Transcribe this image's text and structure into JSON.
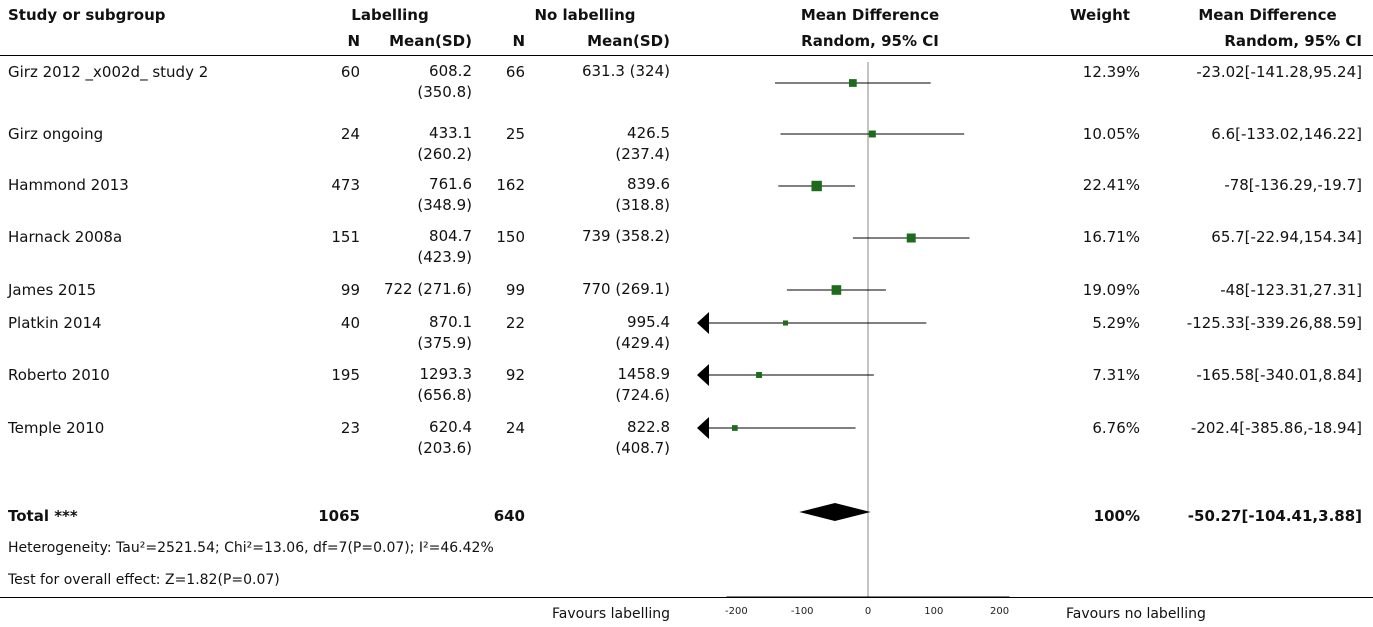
{
  "headers": {
    "study": "Study or subgroup",
    "group1": "Labelling",
    "group2": "No labelling",
    "md_title": "Mean Difference",
    "md_sub": "Random, 95% CI",
    "weight": "Weight",
    "md2_title": "Mean Difference",
    "md2_sub": "Random, 95% CI",
    "n1": "N",
    "mean1": "Mean(SD)",
    "n2": "N",
    "mean2": "Mean(SD)"
  },
  "rows": [
    {
      "study": "Girz 2012 _x002d_ study 2",
      "n1": "60",
      "mean1_a": "608.2",
      "mean1_b": "(350.8)",
      "n2": "66",
      "mean2_a": "631.3 (324)",
      "mean2_b": "",
      "weight": "12.39%",
      "ci": "-23.02[-141.28,95.24]"
    },
    {
      "study": "Girz ongoing",
      "n1": "24",
      "mean1_a": "433.1",
      "mean1_b": "(260.2)",
      "n2": "25",
      "mean2_a": "426.5",
      "mean2_b": "(237.4)",
      "weight": "10.05%",
      "ci": "6.6[-133.02,146.22]"
    },
    {
      "study": "Hammond 2013",
      "n1": "473",
      "mean1_a": "761.6",
      "mean1_b": "(348.9)",
      "n2": "162",
      "mean2_a": "839.6",
      "mean2_b": "(318.8)",
      "weight": "22.41%",
      "ci": "-78[-136.29,-19.7]"
    },
    {
      "study": "Harnack 2008a",
      "n1": "151",
      "mean1_a": "804.7",
      "mean1_b": "(423.9)",
      "n2": "150",
      "mean2_a": "739 (358.2)",
      "mean2_b": "",
      "weight": "16.71%",
      "ci": "65.7[-22.94,154.34]"
    },
    {
      "study": "James 2015",
      "n1": "99",
      "mean1_a": "722 (271.6)",
      "mean1_b": "",
      "n2": "99",
      "mean2_a": "770 (269.1)",
      "mean2_b": "",
      "weight": "19.09%",
      "ci": "-48[-123.31,27.31]"
    },
    {
      "study": "Platkin 2014",
      "n1": "40",
      "mean1_a": "870.1",
      "mean1_b": "(375.9)",
      "n2": "22",
      "mean2_a": "995.4",
      "mean2_b": "(429.4)",
      "weight": "5.29%",
      "ci": "-125.33[-339.26,88.59]"
    },
    {
      "study": "Roberto 2010",
      "n1": "195",
      "mean1_a": "1293.3",
      "mean1_b": "(656.8)",
      "n2": "92",
      "mean2_a": "1458.9",
      "mean2_b": "(724.6)",
      "weight": "7.31%",
      "ci": "-165.58[-340.01,8.84]"
    },
    {
      "study": "Temple 2010",
      "n1": "23",
      "mean1_a": "620.4",
      "mean1_b": "(203.6)",
      "n2": "24",
      "mean2_a": "822.8",
      "mean2_b": "(408.7)",
      "weight": "6.76%",
      "ci": "-202.4[-385.86,-18.94]"
    }
  ],
  "total": {
    "label": "Total ***",
    "n1": "1065",
    "n2": "640",
    "weight": "100%",
    "ci": "-50.27[-104.41,3.88]"
  },
  "heterogeneity": "Heterogeneity: Tau²=2521.54; Chi²=13.06, df=7(P=0.07); I²=46.42%",
  "overall_effect": "Test for overall effect: Z=1.82(P=0.07)",
  "footer": {
    "left": "Favours labelling",
    "right": "Favours no labelling"
  },
  "chart_data": {
    "type": "forest",
    "xlim": [
      -200,
      200
    ],
    "ticks": [
      -200,
      -100,
      0,
      100,
      200
    ],
    "tick_labels": [
      "-200",
      "-100",
      "0",
      "100",
      "200"
    ],
    "studies": [
      {
        "md": -23.02,
        "lo": -141.28,
        "hi": 95.24,
        "weight": 12.39
      },
      {
        "md": 6.6,
        "lo": -133.02,
        "hi": 146.22,
        "weight": 10.05
      },
      {
        "md": -78,
        "lo": -136.29,
        "hi": -19.7,
        "weight": 22.41
      },
      {
        "md": 65.7,
        "lo": -22.94,
        "hi": 154.34,
        "weight": 16.71
      },
      {
        "md": -48,
        "lo": -123.31,
        "hi": 27.31,
        "weight": 19.09
      },
      {
        "md": -125.33,
        "lo": -339.26,
        "hi": 88.59,
        "weight": 5.29
      },
      {
        "md": -165.58,
        "lo": -340.01,
        "hi": 8.84,
        "weight": 7.31
      },
      {
        "md": -202.4,
        "lo": -385.86,
        "hi": -18.94,
        "weight": 6.76
      }
    ],
    "total": {
      "md": -50.27,
      "lo": -104.41,
      "hi": 3.88
    },
    "colors": {
      "marker": "#1e6b1e",
      "line": "#000000",
      "axis": "#888888"
    }
  }
}
